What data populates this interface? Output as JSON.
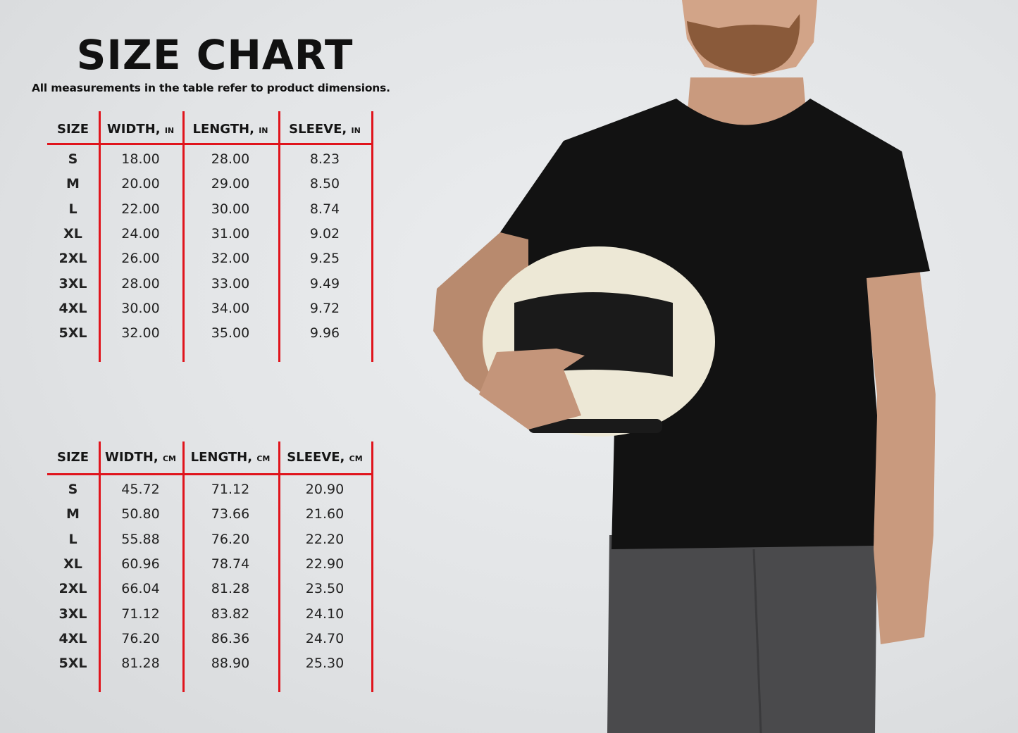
{
  "title": "SIZE CHART",
  "subtitle": "All measurements in the table refer to product dimensions.",
  "colors": {
    "accent": "#e0141c",
    "text": "#111111",
    "background": "#e4e6e8",
    "shirt": "#111111"
  },
  "tables": [
    {
      "headers": [
        {
          "label": "SIZE",
          "unit": ""
        },
        {
          "label": "WIDTH,",
          "unit": "IN"
        },
        {
          "label": "LENGTH,",
          "unit": "IN"
        },
        {
          "label": "SLEEVE,",
          "unit": "IN"
        }
      ],
      "rows": [
        [
          "S",
          "18.00",
          "28.00",
          "8.23"
        ],
        [
          "M",
          "20.00",
          "29.00",
          "8.50"
        ],
        [
          "L",
          "22.00",
          "30.00",
          "8.74"
        ],
        [
          "XL",
          "24.00",
          "31.00",
          "9.02"
        ],
        [
          "2XL",
          "26.00",
          "32.00",
          "9.25"
        ],
        [
          "3XL",
          "28.00",
          "33.00",
          "9.49"
        ],
        [
          "4XL",
          "30.00",
          "34.00",
          "9.72"
        ],
        [
          "5XL",
          "32.00",
          "35.00",
          "9.96"
        ]
      ]
    },
    {
      "headers": [
        {
          "label": "SIZE",
          "unit": ""
        },
        {
          "label": "WIDTH,",
          "unit": "CM"
        },
        {
          "label": "LENGTH,",
          "unit": "CM"
        },
        {
          "label": "SLEEVE,",
          "unit": "CM"
        }
      ],
      "rows": [
        [
          "S",
          "45.72",
          "71.12",
          "20.90"
        ],
        [
          "M",
          "50.80",
          "73.66",
          "21.60"
        ],
        [
          "L",
          "55.88",
          "76.20",
          "22.20"
        ],
        [
          "XL",
          "60.96",
          "78.74",
          "22.90"
        ],
        [
          "2XL",
          "66.04",
          "81.28",
          "23.50"
        ],
        [
          "3XL",
          "71.12",
          "83.82",
          "24.10"
        ],
        [
          "4XL",
          "76.20",
          "86.36",
          "24.70"
        ],
        [
          "5XL",
          "81.28",
          "88.90",
          "25.30"
        ]
      ]
    }
  ]
}
